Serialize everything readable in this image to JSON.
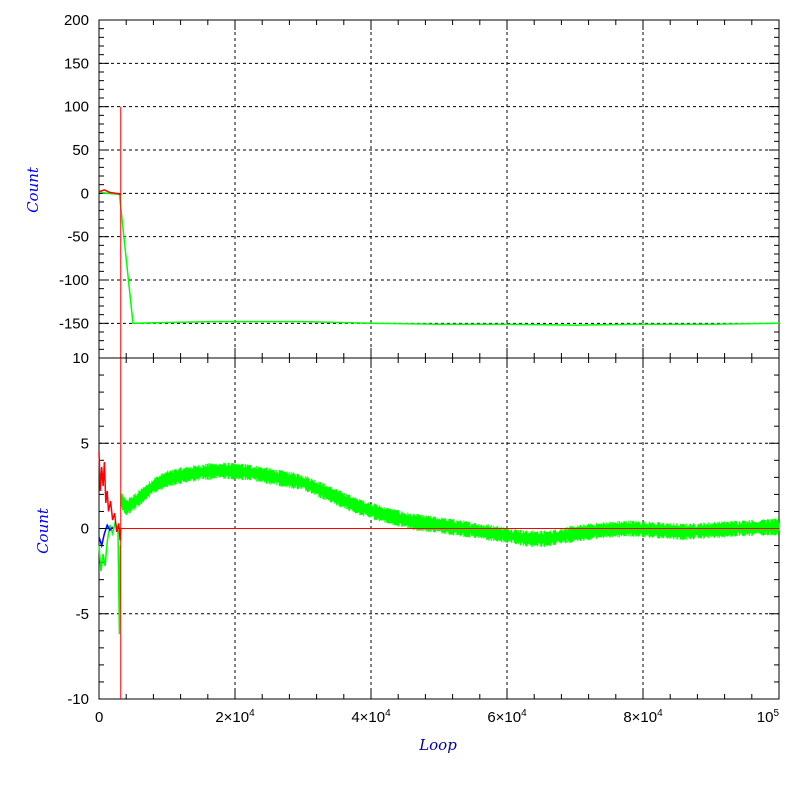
{
  "chart_data": [
    {
      "type": "line",
      "panel": "top",
      "title": "",
      "xlabel": "",
      "ylabel": "Count",
      "xlim": [
        0,
        100000
      ],
      "ylim": [
        -190,
        200
      ],
      "y_ticks": [
        200,
        150,
        100,
        50,
        0,
        -50,
        -100,
        -150
      ],
      "y_tick_labels": [
        "200",
        "150",
        "100",
        "50",
        "0",
        "-50",
        "-100",
        "-150"
      ],
      "grid": true,
      "series": [
        {
          "color": "#00ff00",
          "points": [
            [
              0,
              2
            ],
            [
              1000,
              0
            ],
            [
              3000,
              -1
            ],
            [
              5000,
              -150
            ],
            [
              10000,
              -149
            ],
            [
              17000,
              -148
            ],
            [
              25000,
              -148
            ],
            [
              30000,
              -148
            ],
            [
              40000,
              -150
            ],
            [
              50000,
              -151
            ],
            [
              60000,
              -151
            ],
            [
              70000,
              -152
            ],
            [
              80000,
              -151
            ],
            [
              90000,
              -151
            ],
            [
              100000,
              -150
            ]
          ]
        },
        {
          "color": "#ff0000",
          "points": [
            [
              0,
              2
            ],
            [
              800,
              4
            ],
            [
              1600,
              1
            ],
            [
              2400,
              0
            ],
            [
              3200,
              -1
            ]
          ],
          "vline": {
            "x": 3200,
            "y_top": 100
          }
        }
      ]
    },
    {
      "type": "line",
      "panel": "bottom",
      "title": "",
      "xlabel": "Loop",
      "ylabel": "Count",
      "xlim": [
        0,
        100000
      ],
      "ylim": [
        -10,
        10
      ],
      "y_ticks": [
        10,
        5,
        0,
        -5,
        -10
      ],
      "y_tick_labels": [
        "10",
        "5",
        "0",
        "-5",
        "-10"
      ],
      "x_ticks": [
        0,
        20000,
        40000,
        60000,
        80000,
        100000
      ],
      "x_tick_labels": [
        {
          "base": "0",
          "exp": ""
        },
        {
          "base": "2×10",
          "exp": "4"
        },
        {
          "base": "4×10",
          "exp": "4"
        },
        {
          "base": "6×10",
          "exp": "4"
        },
        {
          "base": "8×10",
          "exp": "4"
        },
        {
          "base": "10",
          "exp": "5"
        }
      ],
      "grid": true,
      "series": [
        {
          "color": "#00ff00",
          "band": true,
          "points": [
            [
              3200,
              1.7
            ],
            [
              4000,
              1.2
            ],
            [
              6000,
              1.8
            ],
            [
              8000,
              2.5
            ],
            [
              10000,
              2.9
            ],
            [
              12000,
              3.1
            ],
            [
              15000,
              3.3
            ],
            [
              18000,
              3.4
            ],
            [
              22000,
              3.3
            ],
            [
              26000,
              3.0
            ],
            [
              30000,
              2.7
            ],
            [
              34000,
              2.0
            ],
            [
              38000,
              1.3
            ],
            [
              42000,
              0.8
            ],
            [
              46000,
              0.4
            ],
            [
              50000,
              0.2
            ],
            [
              55000,
              -0.1
            ],
            [
              60000,
              -0.4
            ],
            [
              63000,
              -0.6
            ],
            [
              66000,
              -0.6
            ],
            [
              70000,
              -0.3
            ],
            [
              74000,
              -0.1
            ],
            [
              78000,
              0.0
            ],
            [
              82000,
              -0.1
            ],
            [
              86000,
              -0.2
            ],
            [
              90000,
              -0.1
            ],
            [
              94000,
              0.0
            ],
            [
              100000,
              0.1
            ]
          ],
          "band_halfwidth": 0.35
        },
        {
          "color": "#00ff00",
          "points": [
            [
              0,
              -1
            ],
            [
              300,
              -2.5
            ],
            [
              600,
              -1.5
            ],
            [
              900,
              -2.2
            ],
            [
              1200,
              -0.8
            ],
            [
              1600,
              0.2
            ],
            [
              2000,
              -0.3
            ],
            [
              2400,
              0.4
            ],
            [
              2800,
              -0.2
            ],
            [
              3000,
              -6.2
            ],
            [
              3100,
              -1
            ]
          ]
        },
        {
          "color": "#0000ff",
          "points": [
            [
              0,
              -0.5
            ],
            [
              400,
              -1.0
            ],
            [
              800,
              -0.3
            ],
            [
              1200,
              0.2
            ],
            [
              1600,
              -0.1
            ],
            [
              2000,
              0.1
            ]
          ]
        },
        {
          "color": "#ff0000",
          "points": [
            [
              0,
              4.5
            ],
            [
              200,
              2.2
            ],
            [
              400,
              3.6
            ],
            [
              600,
              2.5
            ],
            [
              800,
              3.9
            ],
            [
              1000,
              1.5
            ],
            [
              1200,
              2.2
            ],
            [
              1400,
              1.0
            ],
            [
              1700,
              1.6
            ],
            [
              2000,
              0.5
            ],
            [
              2300,
              0.9
            ],
            [
              2600,
              -0.2
            ],
            [
              2900,
              0.3
            ],
            [
              3100,
              -0.7
            ],
            [
              3200,
              0.0
            ]
          ],
          "vline": {
            "x": 3200,
            "y_bottom": -10
          },
          "hline": {
            "y": 0,
            "from": 3200,
            "to": 100000
          }
        }
      ]
    }
  ],
  "colors": {
    "ylabel": "#0000ff",
    "xlabel": "#0000aa"
  }
}
